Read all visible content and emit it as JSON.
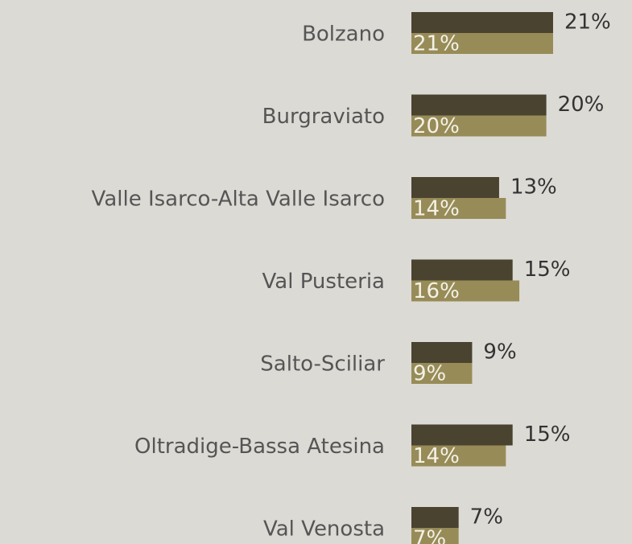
{
  "chart_data": {
    "type": "bar",
    "orientation": "horizontal",
    "categories": [
      "Bolzano",
      "Burgraviato",
      "Valle Isarco-Alta Valle Isarco",
      "Val Pusteria",
      "Salto-Sciliar",
      "Oltradige-Bassa Atesina",
      "Val Venosta"
    ],
    "series": [
      {
        "color": "#4a4330",
        "values": [
          21,
          20,
          13,
          15,
          9,
          15,
          7
        ],
        "value_labels": [
          "21%",
          "20%",
          "13%",
          "15%",
          "9%",
          "15%",
          "7%"
        ]
      },
      {
        "color": "#978c58",
        "values": [
          21,
          20,
          14,
          16,
          9,
          14,
          7
        ],
        "value_labels": [
          "21%",
          "20%",
          "14%",
          "16%",
          "9%",
          "14%",
          "7%"
        ]
      }
    ]
  }
}
